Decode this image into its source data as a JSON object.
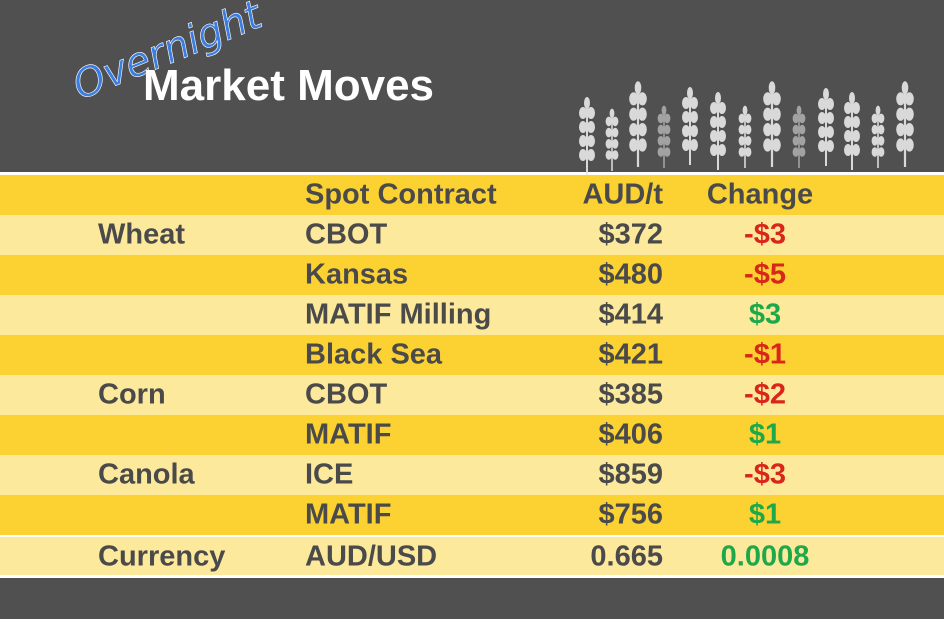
{
  "header": {
    "script": "Overnight",
    "title": "Market Moves"
  },
  "table": {
    "columns": [
      "Spot Contract",
      "AUD/t",
      "Change"
    ],
    "rows": [
      {
        "commodity": "Wheat",
        "contract": "CBOT",
        "price": "$372",
        "change": "-$3"
      },
      {
        "contract": "Kansas",
        "price": "$480",
        "change": "-$5"
      },
      {
        "contract": "MATIF Milling",
        "price": "$414",
        "change": "$3"
      },
      {
        "contract": "Black Sea",
        "price": "$421",
        "change": "-$1"
      },
      {
        "commodity": "Corn",
        "contract": "CBOT",
        "price": "$385",
        "change": "-$2"
      },
      {
        "contract": "MATIF",
        "price": "$406",
        "change": "$1"
      },
      {
        "commodity": "Canola",
        "contract": "ICE",
        "price": "$859",
        "change": "-$3"
      },
      {
        "contract": "MATIF",
        "price": "$756",
        "change": "$1"
      },
      {
        "commodity": "Currency",
        "contract": "AUD/USD",
        "price": "0.665",
        "change": "0.0008"
      }
    ]
  }
}
